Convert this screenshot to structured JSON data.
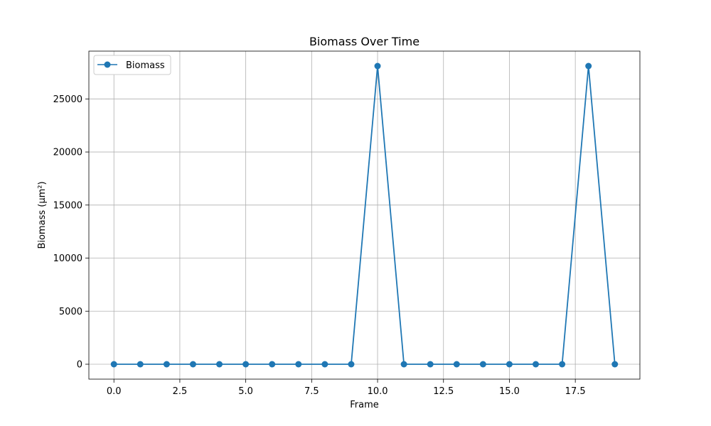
{
  "chart_data": {
    "type": "line",
    "title": "Biomass Over Time",
    "xlabel": "Frame",
    "ylabel": "Biomass (µm²)",
    "x": [
      0,
      1,
      2,
      3,
      4,
      5,
      6,
      7,
      8,
      9,
      10,
      11,
      12,
      13,
      14,
      15,
      16,
      17,
      18,
      19
    ],
    "series": [
      {
        "name": "Biomass",
        "color": "#1f77b4",
        "marker": "circle",
        "values": [
          0,
          0,
          0,
          0,
          0,
          0,
          0,
          0,
          0,
          0,
          28100,
          0,
          0,
          0,
          0,
          0,
          0,
          0,
          28100,
          0
        ]
      }
    ],
    "xlim": [
      -0.95,
      19.95
    ],
    "ylim": [
      -1405,
      29505
    ],
    "xticks": [
      0.0,
      2.5,
      5.0,
      7.5,
      10.0,
      12.5,
      15.0,
      17.5
    ],
    "xtick_labels": [
      "0.0",
      "2.5",
      "5.0",
      "7.5",
      "10.0",
      "12.5",
      "15.0",
      "17.5"
    ],
    "yticks": [
      0,
      5000,
      10000,
      15000,
      20000,
      25000
    ],
    "ytick_labels": [
      "0",
      "5000",
      "10000",
      "15000",
      "20000",
      "25000"
    ],
    "grid": true,
    "legend_position": "top-left"
  }
}
